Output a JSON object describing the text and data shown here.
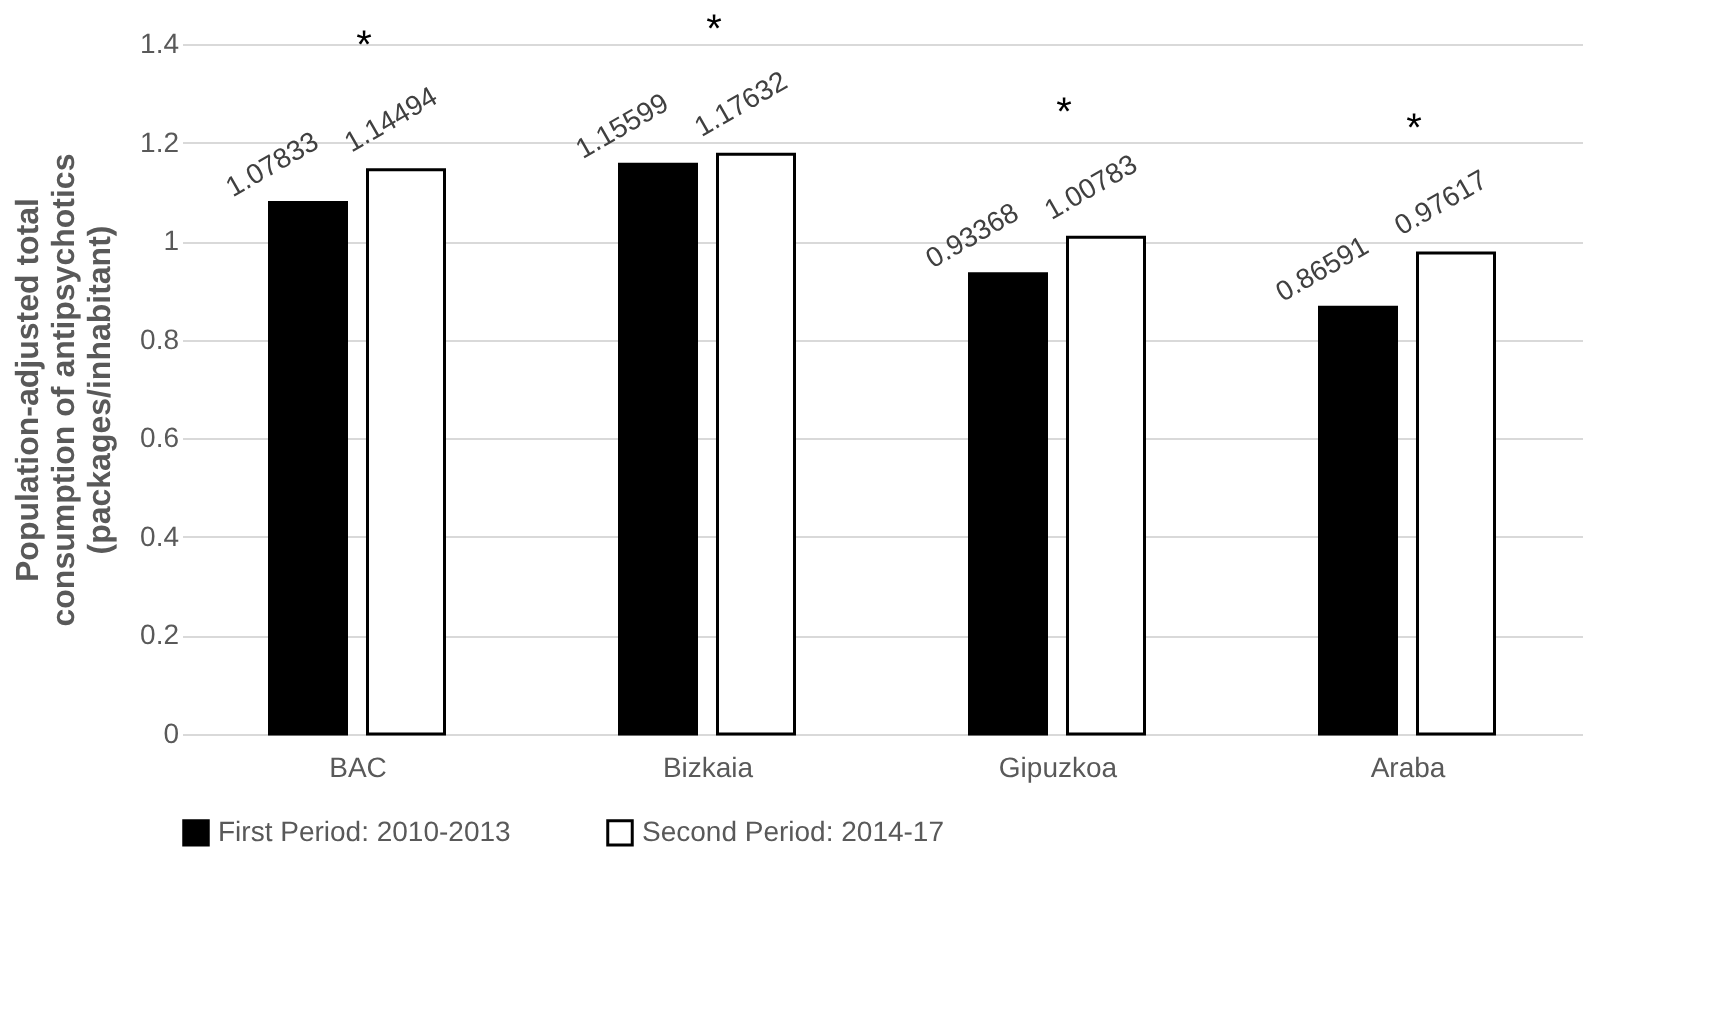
{
  "chart_data": {
    "type": "bar",
    "ylabel": "Population-adjusted total consumption of antipsychotics (packages/inhabitant)",
    "categories": [
      "BAC",
      "Bizkaia",
      "Gipuzkoa",
      "Araba"
    ],
    "series": [
      {
        "name": "First Period:  2010-2013",
        "color": "#000000",
        "values": [
          1.07833,
          1.15599,
          0.93368,
          0.86591
        ]
      },
      {
        "name": "Second Period: 2014-17",
        "color": "#ffffff",
        "values": [
          1.14494,
          1.17632,
          1.00783,
          0.97617
        ]
      }
    ],
    "data_labels": true,
    "annotations": [
      "*",
      "*",
      "*",
      "*"
    ],
    "ylim": [
      0,
      1.4
    ],
    "yticks": [
      0,
      0.2,
      0.4,
      0.6,
      0.8,
      1,
      1.2,
      1.4
    ],
    "grid": "y",
    "legend": "bottom"
  }
}
